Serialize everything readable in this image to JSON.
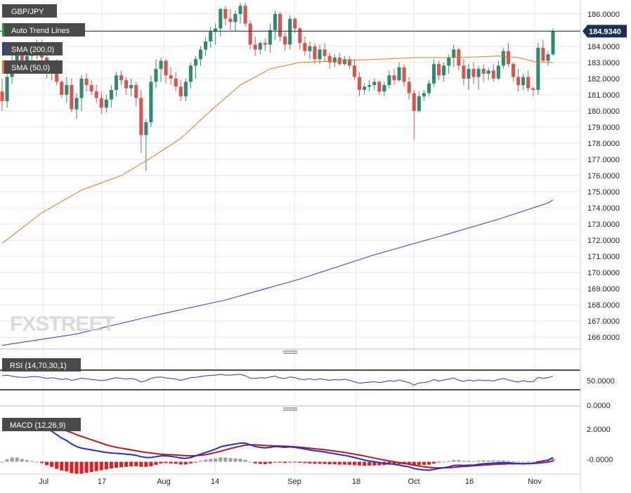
{
  "chart_data": {
    "type": "candlestick",
    "symbol": "GBP/JPY",
    "legend": {
      "symbol_label": "GBP/JPY",
      "auto_trend": "Auto Trend Lines",
      "sma200": "SMA (200,0)",
      "sma50": "SMA (50,0)"
    },
    "last_price_label": "184.9340",
    "last_price": 184.934,
    "watermark": "FXSTREET",
    "x_labels": [
      "Jul",
      "17",
      "Aug",
      "14",
      "Sep",
      "18",
      "Oct",
      "16",
      "Nov"
    ],
    "y_axis": {
      "min": 165.4,
      "max": 186.6,
      "ticks": [
        "186.0000",
        "185.0000",
        "184.0000",
        "183.0000",
        "182.0000",
        "181.0000",
        "180.0000",
        "179.0000",
        "178.0000",
        "177.0000",
        "176.0000",
        "175.0000",
        "174.0000",
        "173.0000",
        "172.0000",
        "171.0000",
        "170.0000",
        "169.0000",
        "168.0000",
        "167.0000",
        "166.0000"
      ]
    },
    "colors": {
      "up": "#2e8b6f",
      "down": "#d9534f",
      "sma200": "#2436d0",
      "sma50": "#e07a20",
      "grid": "#e6e6e6"
    },
    "candles": [
      [
        181.2,
        182.0,
        180.0,
        180.6
      ],
      [
        180.6,
        182.3,
        180.2,
        182.1
      ],
      [
        182.1,
        183.5,
        181.7,
        183.0
      ],
      [
        183.0,
        184.0,
        182.6,
        183.5
      ],
      [
        183.5,
        184.1,
        182.5,
        182.8
      ],
      [
        182.8,
        183.7,
        182.3,
        183.4
      ],
      [
        183.4,
        184.0,
        182.9,
        183.7
      ],
      [
        183.7,
        184.4,
        183.2,
        184.0
      ],
      [
        184.0,
        184.4,
        183.1,
        183.3
      ],
      [
        183.3,
        183.8,
        182.0,
        182.4
      ],
      [
        182.4,
        183.0,
        181.9,
        182.7
      ],
      [
        182.7,
        183.2,
        181.6,
        181.8
      ],
      [
        181.8,
        181.9,
        180.8,
        181.0
      ],
      [
        181.0,
        182.1,
        180.5,
        181.6
      ],
      [
        181.6,
        182.0,
        179.9,
        180.1
      ],
      [
        180.1,
        181.1,
        179.5,
        180.8
      ],
      [
        180.8,
        182.2,
        180.0,
        182.0
      ],
      [
        182.0,
        182.3,
        181.2,
        181.6
      ],
      [
        181.6,
        181.9,
        181.0,
        181.2
      ],
      [
        181.2,
        181.6,
        180.5,
        180.8
      ],
      [
        180.8,
        181.2,
        179.8,
        180.2
      ],
      [
        180.2,
        181.0,
        179.9,
        180.7
      ],
      [
        180.7,
        181.6,
        180.2,
        181.3
      ],
      [
        181.3,
        182.4,
        180.9,
        182.2
      ],
      [
        182.2,
        182.5,
        181.6,
        181.9
      ],
      [
        181.9,
        182.1,
        181.0,
        181.4
      ],
      [
        181.4,
        182.0,
        180.9,
        181.6
      ],
      [
        181.6,
        181.8,
        180.3,
        180.8
      ],
      [
        180.8,
        181.3,
        177.4,
        178.5
      ],
      [
        178.5,
        179.5,
        176.3,
        179.3
      ],
      [
        179.3,
        182.2,
        179.0,
        181.8
      ],
      [
        181.8,
        183.2,
        181.4,
        182.6
      ],
      [
        182.6,
        183.3,
        181.8,
        183.1
      ],
      [
        183.1,
        183.2,
        181.7,
        182.2
      ],
      [
        182.2,
        182.7,
        181.6,
        182.0
      ],
      [
        182.0,
        182.4,
        181.2,
        181.5
      ],
      [
        181.5,
        181.9,
        180.6,
        180.9
      ],
      [
        180.9,
        182.0,
        180.6,
        181.8
      ],
      [
        181.8,
        183.0,
        181.4,
        182.8
      ],
      [
        182.8,
        183.4,
        182.0,
        183.2
      ],
      [
        183.2,
        184.0,
        182.8,
        183.8
      ],
      [
        183.8,
        184.6,
        183.4,
        184.3
      ],
      [
        184.3,
        185.2,
        183.9,
        184.9
      ],
      [
        184.9,
        185.4,
        184.1,
        185.1
      ],
      [
        185.1,
        186.4,
        184.6,
        186.3
      ],
      [
        186.3,
        186.5,
        185.3,
        185.7
      ],
      [
        185.7,
        186.3,
        185.0,
        185.5
      ],
      [
        185.5,
        186.2,
        184.9,
        186.0
      ],
      [
        186.0,
        186.7,
        185.4,
        186.5
      ],
      [
        186.5,
        186.7,
        185.2,
        185.4
      ],
      [
        185.4,
        185.6,
        183.8,
        184.1
      ],
      [
        184.1,
        184.6,
        183.4,
        183.8
      ],
      [
        183.8,
        184.3,
        183.5,
        184.2
      ],
      [
        184.2,
        184.5,
        183.7,
        184.1
      ],
      [
        184.1,
        185.4,
        183.6,
        185.0
      ],
      [
        185.0,
        186.2,
        184.4,
        186.0
      ],
      [
        186.0,
        186.1,
        184.3,
        184.6
      ],
      [
        184.6,
        184.9,
        183.7,
        184.1
      ],
      [
        184.1,
        185.9,
        183.8,
        185.7
      ],
      [
        185.7,
        185.8,
        184.8,
        185.1
      ],
      [
        185.1,
        185.2,
        183.8,
        184.2
      ],
      [
        184.2,
        184.6,
        183.4,
        183.7
      ],
      [
        183.7,
        184.3,
        183.2,
        184.0
      ],
      [
        184.0,
        184.2,
        182.9,
        183.2
      ],
      [
        183.2,
        184.1,
        182.9,
        183.8
      ],
      [
        183.8,
        184.2,
        183.0,
        183.4
      ],
      [
        183.4,
        183.6,
        182.6,
        183.0
      ],
      [
        183.0,
        183.5,
        182.7,
        183.3
      ],
      [
        183.3,
        183.6,
        182.8,
        182.9
      ],
      [
        182.9,
        183.4,
        182.8,
        183.2
      ],
      [
        183.2,
        183.4,
        182.6,
        182.8
      ],
      [
        182.8,
        183.2,
        181.9,
        182.1
      ],
      [
        182.1,
        182.4,
        180.9,
        181.3
      ],
      [
        181.3,
        181.7,
        181.0,
        181.5
      ],
      [
        181.5,
        181.9,
        181.2,
        181.6
      ],
      [
        181.6,
        182.0,
        181.3,
        181.8
      ],
      [
        181.8,
        181.9,
        181.0,
        181.2
      ],
      [
        181.2,
        181.8,
        180.9,
        181.6
      ],
      [
        181.6,
        182.5,
        181.4,
        182.2
      ],
      [
        182.2,
        182.6,
        181.6,
        181.9
      ],
      [
        181.9,
        183.0,
        181.8,
        182.7
      ],
      [
        182.7,
        182.9,
        181.5,
        181.8
      ],
      [
        181.8,
        182.1,
        180.7,
        181.1
      ],
      [
        181.1,
        181.3,
        178.2,
        180.0
      ],
      [
        180.0,
        181.2,
        179.9,
        180.9
      ],
      [
        180.9,
        181.3,
        180.6,
        181.1
      ],
      [
        181.1,
        181.9,
        180.9,
        181.7
      ],
      [
        181.7,
        183.2,
        181.5,
        182.9
      ],
      [
        182.9,
        183.1,
        181.9,
        182.2
      ],
      [
        182.2,
        183.0,
        181.8,
        182.8
      ],
      [
        182.8,
        183.5,
        182.3,
        183.3
      ],
      [
        183.3,
        184.1,
        182.7,
        183.8
      ],
      [
        183.8,
        183.9,
        182.5,
        182.8
      ],
      [
        182.8,
        183.2,
        181.6,
        182.0
      ],
      [
        182.0,
        182.9,
        181.3,
        182.6
      ],
      [
        182.6,
        183.0,
        181.7,
        182.1
      ],
      [
        182.1,
        182.8,
        181.3,
        182.6
      ],
      [
        182.6,
        182.9,
        181.8,
        182.3
      ],
      [
        182.3,
        182.7,
        181.9,
        182.5
      ],
      [
        182.5,
        182.9,
        181.8,
        182.0
      ],
      [
        182.0,
        183.1,
        181.9,
        182.8
      ],
      [
        182.8,
        183.9,
        182.6,
        183.7
      ],
      [
        183.7,
        184.2,
        182.7,
        182.9
      ],
      [
        182.9,
        183.0,
        181.8,
        182.1
      ],
      [
        182.1,
        182.6,
        181.2,
        181.6
      ],
      [
        181.6,
        182.3,
        181.3,
        182.1
      ],
      [
        182.1,
        182.5,
        181.2,
        181.4
      ],
      [
        181.4,
        181.5,
        180.9,
        181.3
      ],
      [
        181.3,
        184.2,
        181.0,
        183.9
      ],
      [
        183.9,
        184.4,
        183.0,
        183.1
      ],
      [
        183.1,
        183.7,
        182.8,
        183.5
      ],
      [
        183.5,
        185.1,
        183.4,
        184.93
      ]
    ],
    "sma200": [
      [
        0,
        165.5
      ],
      [
        15,
        166.2
      ],
      [
        30,
        167.3
      ],
      [
        45,
        168.3
      ],
      [
        60,
        169.6
      ],
      [
        75,
        171.1
      ],
      [
        90,
        172.4
      ],
      [
        100,
        173.3
      ],
      [
        110,
        174.3
      ],
      [
        111,
        174.5
      ]
    ],
    "sma50": [
      [
        0,
        171.8
      ],
      [
        8,
        173.7
      ],
      [
        16,
        175.1
      ],
      [
        24,
        176.0
      ],
      [
        30,
        177.1
      ],
      [
        36,
        178.3
      ],
      [
        42,
        180.0
      ],
      [
        48,
        181.6
      ],
      [
        54,
        182.6
      ],
      [
        60,
        183.0
      ],
      [
        68,
        183.1
      ],
      [
        76,
        183.2
      ],
      [
        84,
        183.3
      ],
      [
        92,
        183.3
      ],
      [
        100,
        183.4
      ],
      [
        104,
        183.3
      ],
      [
        108,
        183.0
      ],
      [
        111,
        183.0
      ]
    ],
    "rsi": {
      "label": "RSI (14,70,30,1)",
      "ticks": [
        "50.0000",
        "0.0000"
      ],
      "min": 0,
      "max": 100,
      "upper": 70,
      "lower": 30,
      "values": [
        62,
        64,
        61,
        59,
        58,
        58,
        60,
        60,
        58,
        55,
        57,
        55,
        52,
        54,
        50,
        52,
        56,
        54,
        52,
        51,
        49,
        51,
        54,
        57,
        55,
        53,
        55,
        52,
        45,
        49,
        55,
        58,
        59,
        56,
        55,
        53,
        50,
        53,
        57,
        58,
        60,
        62,
        63,
        64,
        66,
        64,
        64,
        65,
        66,
        62,
        56,
        55,
        57,
        56,
        59,
        61,
        56,
        55,
        59,
        57,
        53,
        52,
        54,
        51,
        54,
        52,
        50,
        52,
        51,
        53,
        50,
        46,
        42,
        44,
        45,
        46,
        44,
        46,
        49,
        47,
        51,
        47,
        44,
        37,
        43,
        44,
        46,
        52,
        48,
        51,
        53,
        56,
        50,
        47,
        51,
        48,
        51,
        49,
        50,
        48,
        52,
        55,
        51,
        48,
        45,
        49,
        46,
        46,
        58,
        55,
        57,
        61
      ]
    },
    "macd": {
      "label": "MACD (12,26,9)",
      "ticks": [
        "2.0000",
        "-0.0000"
      ],
      "min": -0.6,
      "max": 2.8,
      "macd": [
        2.0,
        2.2,
        2.35,
        2.4,
        2.35,
        2.3,
        2.25,
        2.2,
        2.1,
        1.95,
        1.8,
        1.6,
        1.4,
        1.25,
        1.05,
        0.9,
        0.8,
        0.75,
        0.7,
        0.65,
        0.6,
        0.55,
        0.52,
        0.5,
        0.48,
        0.45,
        0.42,
        0.38,
        0.3,
        0.25,
        0.25,
        0.3,
        0.35,
        0.35,
        0.32,
        0.28,
        0.22,
        0.2,
        0.25,
        0.35,
        0.45,
        0.55,
        0.65,
        0.75,
        0.88,
        0.95,
        1.0,
        1.05,
        1.1,
        1.1,
        1.0,
        0.9,
        0.85,
        0.82,
        0.85,
        0.9,
        0.88,
        0.85,
        0.88,
        0.85,
        0.8,
        0.75,
        0.7,
        0.65,
        0.62,
        0.58,
        0.52,
        0.48,
        0.42,
        0.38,
        0.32,
        0.25,
        0.18,
        0.1,
        0.05,
        0.0,
        -0.05,
        -0.1,
        -0.12,
        -0.15,
        -0.2,
        -0.25,
        -0.3,
        -0.4,
        -0.45,
        -0.48,
        -0.5,
        -0.45,
        -0.4,
        -0.35,
        -0.3,
        -0.22,
        -0.2,
        -0.22,
        -0.2,
        -0.2,
        -0.15,
        -0.12,
        -0.1,
        -0.08,
        -0.06,
        -0.05,
        -0.06,
        -0.08,
        -0.1,
        -0.12,
        -0.1,
        -0.1,
        -0.02,
        0.05,
        0.1,
        0.25
      ],
      "signal": [
        2.0,
        2.05,
        2.1,
        2.15,
        2.18,
        2.2,
        2.2,
        2.2,
        2.18,
        2.15,
        2.1,
        2.02,
        1.92,
        1.82,
        1.72,
        1.6,
        1.5,
        1.4,
        1.3,
        1.2,
        1.1,
        1.0,
        0.92,
        0.85,
        0.8,
        0.75,
        0.7,
        0.65,
        0.6,
        0.55,
        0.52,
        0.48,
        0.45,
        0.43,
        0.42,
        0.4,
        0.38,
        0.36,
        0.35,
        0.36,
        0.38,
        0.42,
        0.48,
        0.55,
        0.62,
        0.7,
        0.78,
        0.85,
        0.92,
        0.98,
        1.0,
        1.0,
        0.98,
        0.96,
        0.95,
        0.94,
        0.93,
        0.92,
        0.9,
        0.88,
        0.86,
        0.83,
        0.8,
        0.77,
        0.74,
        0.71,
        0.67,
        0.63,
        0.59,
        0.55,
        0.5,
        0.45,
        0.4,
        0.34,
        0.28,
        0.22,
        0.16,
        0.1,
        0.05,
        0.0,
        -0.05,
        -0.1,
        -0.15,
        -0.2,
        -0.25,
        -0.3,
        -0.33,
        -0.35,
        -0.36,
        -0.36,
        -0.35,
        -0.33,
        -0.3,
        -0.28,
        -0.26,
        -0.24,
        -0.22,
        -0.2,
        -0.18,
        -0.16,
        -0.14,
        -0.13,
        -0.12,
        -0.12,
        -0.12,
        -0.12,
        -0.11,
        -0.1,
        -0.08,
        -0.05,
        -0.02,
        0.05
      ]
    }
  }
}
